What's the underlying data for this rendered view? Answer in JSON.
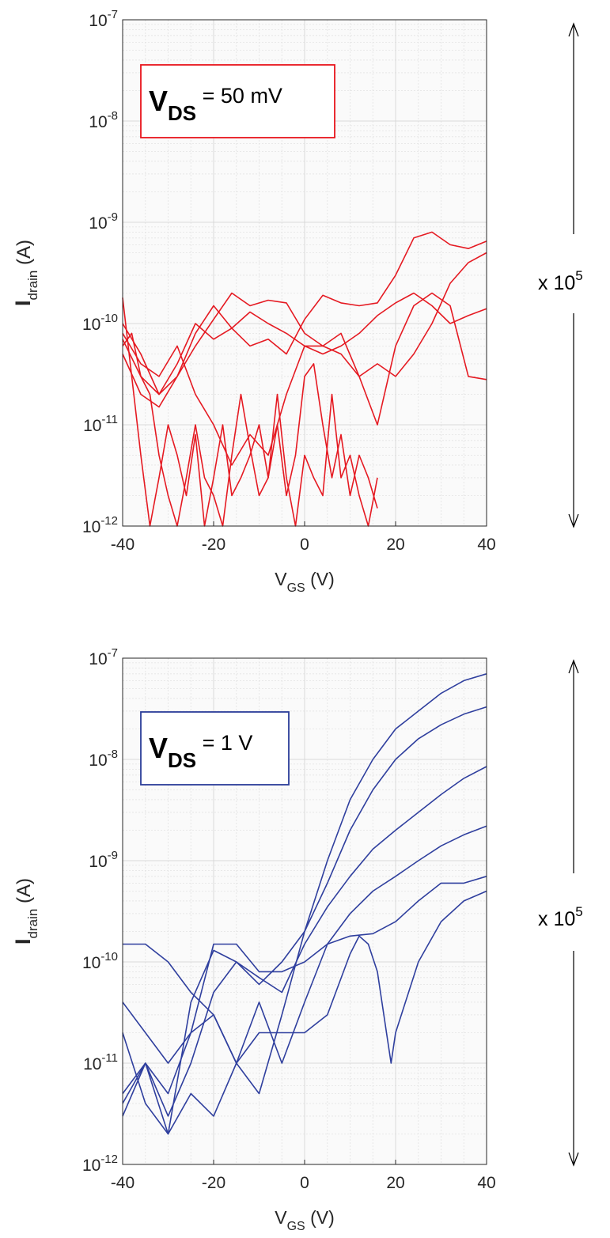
{
  "chart_data": [
    {
      "type": "line",
      "scale": {
        "x": "linear",
        "y": "log"
      },
      "xlim": [
        -40,
        40
      ],
      "ylim": [
        1e-12,
        1e-07
      ],
      "grid": true,
      "minor_grid": true,
      "x_ticks": [
        "-40",
        "-20",
        "0",
        "20",
        "40"
      ],
      "y_ticks": [
        {
          "base": "10",
          "exp": "-12"
        },
        {
          "base": "10",
          "exp": "-11"
        },
        {
          "base": "10",
          "exp": "-10"
        },
        {
          "base": "10",
          "exp": "-9"
        },
        {
          "base": "10",
          "exp": "-8"
        },
        {
          "base": "10",
          "exp": "-7"
        }
      ],
      "xlabel": {
        "main": "V",
        "sub": "GS",
        "unit": " (V)"
      },
      "ylabel": {
        "main": "I",
        "sub": "drain",
        "unit": " (A)"
      },
      "annotation": {
        "main": "V",
        "sub": "DS",
        "rest": " = 50 mV",
        "color": "#e8141c"
      },
      "side_factor": {
        "prefix": "x 10",
        "exp": "5"
      },
      "line_color": "#e51a22",
      "series": [
        {
          "x": [
            -40,
            -38,
            -36,
            -34,
            -32,
            -30,
            -28,
            -26,
            -24,
            -22,
            -20,
            -18,
            -16,
            -14,
            -12,
            -10,
            -8,
            -6,
            -4,
            -2,
            0,
            2,
            4,
            6,
            8,
            10,
            12,
            14,
            16
          ],
          "y": [
            1.8e-10,
            3e-11,
            5e-12,
            1e-12,
            3e-12,
            1e-11,
            5e-12,
            2e-12,
            8e-12,
            1e-12,
            3e-12,
            1e-11,
            2e-12,
            3e-12,
            5e-12,
            1e-11,
            3e-12,
            2e-11,
            3e-12,
            1e-12,
            5e-12,
            3e-12,
            2e-12,
            2e-11,
            3e-12,
            5e-12,
            2e-12,
            1e-12,
            3e-12
          ]
        },
        {
          "x": [
            -40,
            -38,
            -36,
            -34,
            -32,
            -30,
            -28,
            -26,
            -24,
            -22,
            -20,
            -18,
            -16,
            -14,
            -12,
            -10,
            -8,
            -6,
            -4,
            -2,
            0,
            2,
            4,
            6,
            8,
            10,
            12,
            14,
            16
          ],
          "y": [
            6e-11,
            8e-11,
            3e-11,
            2e-11,
            5e-12,
            2e-12,
            1e-12,
            3e-12,
            1e-11,
            3e-12,
            2e-12,
            1e-12,
            5e-12,
            2e-11,
            6e-12,
            2e-12,
            3e-12,
            1e-11,
            2e-12,
            5e-12,
            3e-11,
            4e-11,
            1e-11,
            3e-12,
            8e-12,
            2e-12,
            5e-12,
            3e-12,
            1.5e-12
          ]
        },
        {
          "x": [
            -40,
            -36,
            -32,
            -28,
            -24,
            -20,
            -16,
            -12,
            -8,
            -4,
            0,
            4,
            8,
            12,
            16,
            20,
            24,
            28,
            32,
            36,
            40
          ],
          "y": [
            8e-11,
            4e-11,
            3e-11,
            6e-11,
            2e-11,
            1e-11,
            4e-12,
            8e-12,
            5e-12,
            2e-11,
            6e-11,
            6e-11,
            8e-11,
            3e-11,
            1e-11,
            6e-11,
            1.5e-10,
            2e-10,
            1.5e-10,
            3e-11,
            2.8e-11
          ]
        },
        {
          "x": [
            -40,
            -36,
            -32,
            -28,
            -24,
            -20,
            -16,
            -12,
            -8,
            -4,
            0,
            4,
            8,
            12,
            16,
            20,
            24,
            28,
            32,
            36,
            40
          ],
          "y": [
            5e-11,
            2e-11,
            1.5e-11,
            3e-11,
            8e-11,
            1.5e-10,
            9e-11,
            1.3e-10,
            1e-10,
            8e-11,
            6e-11,
            5e-11,
            6e-11,
            8e-11,
            1.2e-10,
            1.6e-10,
            2e-10,
            1.5e-10,
            1e-10,
            1.2e-10,
            1.4e-10
          ]
        },
        {
          "x": [
            -40,
            -36,
            -32,
            -28,
            -24,
            -20,
            -16,
            -12,
            -8,
            -4,
            0,
            4,
            8,
            12,
            16,
            20,
            24,
            28,
            32,
            36,
            40
          ],
          "y": [
            1e-10,
            5e-11,
            2e-11,
            4e-11,
            1e-10,
            7e-11,
            9e-11,
            6e-11,
            7e-11,
            5e-11,
            1.1e-10,
            1.9e-10,
            1.6e-10,
            1.5e-10,
            1.6e-10,
            3e-10,
            7e-10,
            8e-10,
            6e-10,
            5.5e-10,
            6.5e-10
          ]
        },
        {
          "x": [
            -40,
            -36,
            -32,
            -28,
            -24,
            -20,
            -16,
            -12,
            -8,
            -4,
            0,
            4,
            8,
            12,
            16,
            20,
            24,
            28,
            32,
            36,
            40
          ],
          "y": [
            7e-11,
            3e-11,
            2e-11,
            3e-11,
            6e-11,
            1.1e-10,
            2e-10,
            1.5e-10,
            1.7e-10,
            1.6e-10,
            8e-11,
            6e-11,
            5e-11,
            3e-11,
            4e-11,
            3e-11,
            5e-11,
            1e-10,
            2.5e-10,
            4e-10,
            5e-10
          ]
        }
      ]
    },
    {
      "type": "line",
      "scale": {
        "x": "linear",
        "y": "log"
      },
      "xlim": [
        -40,
        40
      ],
      "ylim": [
        1e-12,
        1e-07
      ],
      "grid": true,
      "minor_grid": true,
      "x_ticks": [
        "-40",
        "-20",
        "0",
        "20",
        "40"
      ],
      "y_ticks": [
        {
          "base": "10",
          "exp": "-12"
        },
        {
          "base": "10",
          "exp": "-11"
        },
        {
          "base": "10",
          "exp": "-10"
        },
        {
          "base": "10",
          "exp": "-9"
        },
        {
          "base": "10",
          "exp": "-8"
        },
        {
          "base": "10",
          "exp": "-7"
        }
      ],
      "xlabel": {
        "main": "V",
        "sub": "GS",
        "unit": " (V)"
      },
      "ylabel": {
        "main": "I",
        "sub": "drain",
        "unit": " (A)"
      },
      "annotation": {
        "main": "V",
        "sub": "DS",
        "rest": " = 1 V",
        "color": "#2b3d99"
      },
      "side_factor": {
        "prefix": "x 10",
        "exp": "5"
      },
      "line_color": "#2f3f9e",
      "series": [
        {
          "x": [
            -40,
            -35,
            -30,
            -25,
            -20,
            -15,
            -10,
            -5,
            0,
            5,
            10,
            15,
            20,
            25,
            30,
            35,
            40
          ],
          "y": [
            1.5e-10,
            1.5e-10,
            1e-10,
            5e-11,
            3e-11,
            1e-11,
            5e-12,
            3e-11,
            2e-10,
            1e-09,
            4e-09,
            1e-08,
            2e-08,
            3e-08,
            4.5e-08,
            6e-08,
            7e-08
          ]
        },
        {
          "x": [
            -40,
            -35,
            -30,
            -25,
            -20,
            -15,
            -10,
            -5,
            0,
            5,
            10,
            15,
            20,
            25,
            30,
            35,
            40
          ],
          "y": [
            5e-12,
            1e-11,
            3e-12,
            1e-11,
            5e-11,
            1e-10,
            6e-11,
            1e-10,
            2e-10,
            6e-10,
            2e-09,
            5e-09,
            1e-08,
            1.6e-08,
            2.2e-08,
            2.8e-08,
            3.3e-08
          ]
        },
        {
          "x": [
            -40,
            -35,
            -30,
            -25,
            -20,
            -15,
            -10,
            -5,
            0,
            5,
            10,
            15,
            20,
            25,
            30,
            35,
            40
          ],
          "y": [
            2e-11,
            4e-12,
            2e-12,
            4e-11,
            1.3e-10,
            1e-10,
            7e-11,
            5e-11,
            1.5e-10,
            3.5e-10,
            7e-10,
            1.3e-09,
            2e-09,
            3e-09,
            4.5e-09,
            6.5e-09,
            8.5e-09
          ]
        },
        {
          "x": [
            -40,
            -35,
            -30,
            -25,
            -20,
            -15,
            -10,
            -5,
            0,
            5,
            10,
            15,
            20,
            25,
            30,
            35,
            40
          ],
          "y": [
            4e-12,
            1e-11,
            2e-12,
            5e-12,
            3e-12,
            1e-11,
            4e-11,
            1e-11,
            4e-11,
            1.5e-10,
            3e-10,
            5e-10,
            7e-10,
            1e-09,
            1.4e-09,
            1.8e-09,
            2.2e-09
          ]
        },
        {
          "x": [
            -40,
            -35,
            -30,
            -25,
            -20,
            -15,
            -10,
            -5,
            0,
            5,
            10,
            15,
            20,
            25,
            30,
            35,
            40
          ],
          "y": [
            4e-11,
            2e-11,
            1e-11,
            2e-11,
            1.5e-10,
            1.5e-10,
            8e-11,
            8e-11,
            1e-10,
            1.5e-10,
            1.8e-10,
            1.9e-10,
            2.5e-10,
            4e-10,
            6e-10,
            6e-10,
            7e-10
          ]
        },
        {
          "x": [
            -40,
            -35,
            -30,
            -25,
            -20,
            -15,
            -10,
            -5,
            0,
            5,
            10,
            12,
            14,
            16,
            18,
            19,
            20,
            25,
            30,
            35,
            40
          ],
          "y": [
            3e-12,
            1e-11,
            5e-12,
            2e-11,
            3e-11,
            1e-11,
            2e-11,
            2e-11,
            2e-11,
            3e-11,
            1.2e-10,
            1.8e-10,
            1.5e-10,
            8e-11,
            2e-11,
            1e-11,
            2e-11,
            1e-10,
            2.5e-10,
            4e-10,
            5e-10
          ]
        }
      ]
    }
  ]
}
